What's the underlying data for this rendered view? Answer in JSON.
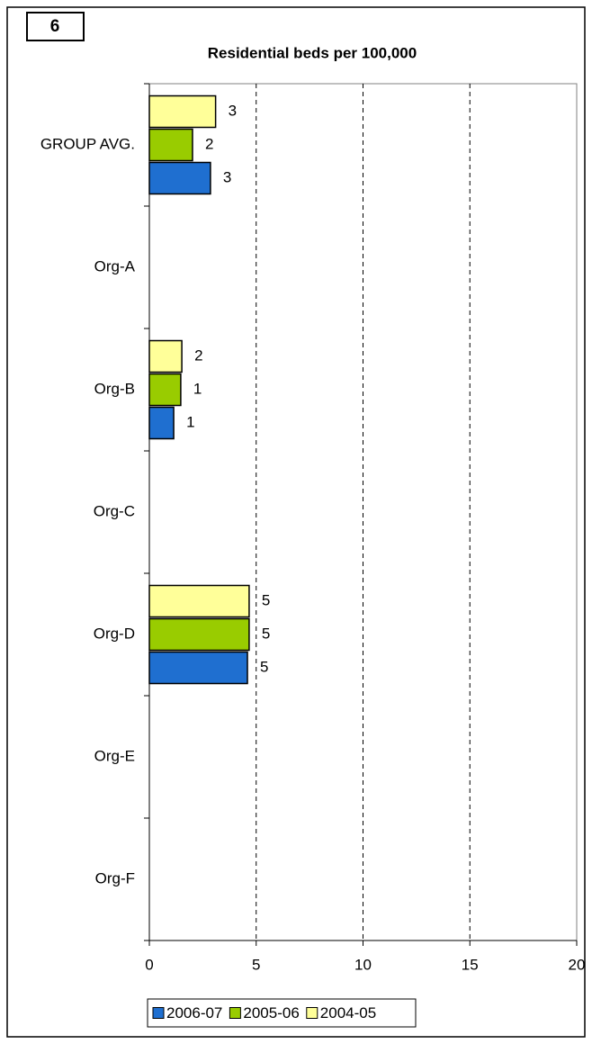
{
  "panel_label": "6",
  "chart_data": {
    "type": "hbar",
    "title": "Residential beds per 100,000",
    "categories": [
      "GROUP AVG.",
      "Org-A",
      "Org-B",
      "Org-C",
      "Org-D",
      "Org-E",
      "Org-F"
    ],
    "series": [
      {
        "name": "2006-07",
        "color": "#1f6fd0",
        "values": [
          2.86,
          null,
          1.14,
          null,
          4.59,
          null,
          null
        ],
        "value_labels": [
          "3",
          null,
          "1",
          null,
          "5",
          null,
          null
        ]
      },
      {
        "name": "2005-06",
        "color": "#99cc00",
        "values": [
          2.02,
          null,
          1.47,
          null,
          4.67,
          null,
          null
        ],
        "value_labels": [
          "2",
          null,
          "1",
          null,
          "5",
          null,
          null
        ]
      },
      {
        "name": "2004-05",
        "color": "#ffff99",
        "values": [
          3.1,
          null,
          1.52,
          null,
          4.67,
          null,
          null
        ],
        "value_labels": [
          "3",
          null,
          "2",
          null,
          "5",
          null,
          null
        ]
      }
    ],
    "xlim": [
      0,
      20
    ],
    "xticks": [
      0,
      5,
      10,
      15,
      20
    ],
    "grid": true,
    "legend": "bottom"
  }
}
